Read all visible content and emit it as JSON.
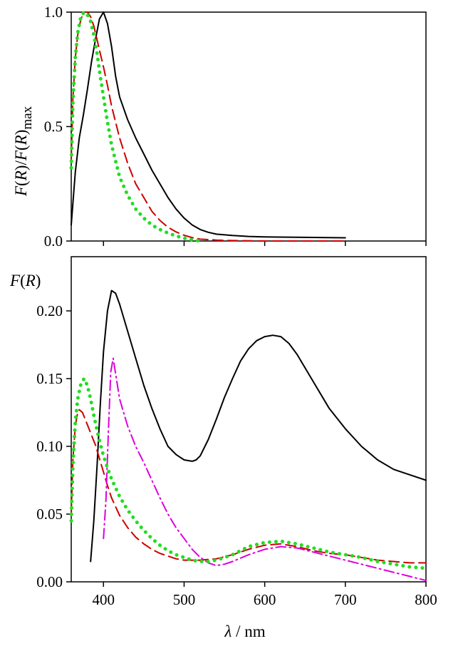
{
  "chart_data": [
    {
      "type": "line",
      "xlim": [
        360,
        800
      ],
      "ylim": [
        0,
        1.0
      ],
      "ylabel": "F(R)/F(R)max",
      "ylabel_parts": {
        "a": "F",
        "b": "(",
        "c": "R",
        "d": ")/",
        "e": "F",
        "f": "(",
        "g": "R",
        "h": ")",
        "sub": "max"
      },
      "yticks": [
        {
          "value": 0.0,
          "label": "0.0"
        },
        {
          "value": 0.5,
          "label": "0.5"
        },
        {
          "value": 1.0,
          "label": "1.0"
        }
      ],
      "xticks": [
        400,
        500,
        600,
        700,
        800
      ],
      "series": [
        {
          "color": "#000000",
          "style": "solid",
          "x": [
            360,
            365,
            370,
            375,
            380,
            385,
            390,
            395,
            400,
            405,
            410,
            415,
            420,
            430,
            440,
            450,
            460,
            470,
            480,
            490,
            500,
            510,
            520,
            530,
            540,
            560,
            580,
            600,
            650,
            700
          ],
          "y": [
            0.07,
            0.3,
            0.45,
            0.55,
            0.66,
            0.78,
            0.88,
            0.97,
            1.0,
            0.95,
            0.85,
            0.72,
            0.63,
            0.53,
            0.45,
            0.38,
            0.31,
            0.25,
            0.19,
            0.14,
            0.1,
            0.07,
            0.05,
            0.038,
            0.03,
            0.024,
            0.02,
            0.018,
            0.016,
            0.014
          ]
        },
        {
          "color": "#cc0000",
          "style": "dashed",
          "x": [
            360,
            362,
            365,
            368,
            372,
            376,
            380,
            384,
            388,
            392,
            396,
            400,
            405,
            410,
            420,
            430,
            440,
            450,
            460,
            470,
            480,
            490,
            500,
            510,
            520,
            540,
            560,
            600,
            650,
            700
          ],
          "y": [
            0.35,
            0.62,
            0.8,
            0.9,
            0.97,
            1.0,
            1.0,
            0.98,
            0.94,
            0.88,
            0.82,
            0.76,
            0.68,
            0.59,
            0.45,
            0.34,
            0.25,
            0.19,
            0.13,
            0.09,
            0.06,
            0.04,
            0.025,
            0.015,
            0.008,
            0.004,
            0.002,
            0.0,
            0.0,
            0.0
          ]
        },
        {
          "color": "#22dd22",
          "style": "dotted",
          "x": [
            360,
            362,
            365,
            368,
            372,
            376,
            380,
            384,
            388,
            392,
            396,
            400,
            405,
            410,
            420,
            430,
            440,
            450,
            460,
            470,
            480,
            490,
            500,
            510,
            520
          ],
          "y": [
            0.32,
            0.6,
            0.8,
            0.91,
            0.98,
            1.0,
            0.99,
            0.96,
            0.9,
            0.82,
            0.72,
            0.63,
            0.52,
            0.42,
            0.28,
            0.2,
            0.14,
            0.1,
            0.07,
            0.05,
            0.035,
            0.022,
            0.012,
            0.005,
            0.0
          ]
        }
      ]
    },
    {
      "type": "line",
      "xlim": [
        360,
        800
      ],
      "ylim": [
        0,
        0.24
      ],
      "xlabel": "λ / nm",
      "xlabel_parts": {
        "sym": "λ",
        "unit": " / nm"
      },
      "ylabel": "F(R)",
      "ylabel_parts": {
        "a": "F",
        "b": "(",
        "c": "R",
        "d": ")"
      },
      "yticks": [
        {
          "value": 0.0,
          "label": "0.00"
        },
        {
          "value": 0.05,
          "label": "0.05"
        },
        {
          "value": 0.1,
          "label": "0.10"
        },
        {
          "value": 0.15,
          "label": "0.15"
        },
        {
          "value": 0.2,
          "label": "0.20"
        }
      ],
      "xticks": [
        {
          "value": 400,
          "label": "400"
        },
        {
          "value": 500,
          "label": "500"
        },
        {
          "value": 600,
          "label": "600"
        },
        {
          "value": 700,
          "label": "700"
        },
        {
          "value": 800,
          "label": "800"
        }
      ],
      "series": [
        {
          "color": "#000000",
          "style": "solid",
          "x": [
            384,
            388,
            392,
            396,
            400,
            405,
            410,
            415,
            420,
            430,
            440,
            450,
            460,
            470,
            480,
            490,
            500,
            510,
            515,
            520,
            530,
            540,
            550,
            560,
            570,
            580,
            590,
            600,
            610,
            620,
            630,
            640,
            650,
            660,
            680,
            700,
            720,
            740,
            760,
            780,
            800
          ],
          "y": [
            0.015,
            0.045,
            0.085,
            0.13,
            0.17,
            0.2,
            0.215,
            0.213,
            0.205,
            0.185,
            0.165,
            0.145,
            0.128,
            0.113,
            0.1,
            0.094,
            0.09,
            0.089,
            0.09,
            0.093,
            0.105,
            0.12,
            0.136,
            0.15,
            0.163,
            0.172,
            0.178,
            0.181,
            0.182,
            0.181,
            0.176,
            0.168,
            0.158,
            0.148,
            0.128,
            0.113,
            0.1,
            0.09,
            0.083,
            0.079,
            0.075
          ]
        },
        {
          "color": "#cc0000",
          "style": "dashed",
          "x": [
            360,
            362,
            365,
            368,
            370,
            374,
            378,
            382,
            386,
            390,
            395,
            400,
            405,
            410,
            420,
            430,
            440,
            450,
            460,
            470,
            480,
            490,
            500,
            520,
            540,
            560,
            580,
            600,
            620,
            640,
            660,
            680,
            700,
            720,
            740,
            760,
            780,
            800
          ],
          "y": [
            0.05,
            0.09,
            0.115,
            0.125,
            0.127,
            0.125,
            0.119,
            0.113,
            0.107,
            0.101,
            0.091,
            0.081,
            0.071,
            0.062,
            0.049,
            0.04,
            0.033,
            0.028,
            0.024,
            0.021,
            0.019,
            0.017,
            0.016,
            0.016,
            0.017,
            0.02,
            0.024,
            0.027,
            0.028,
            0.026,
            0.023,
            0.021,
            0.02,
            0.018,
            0.016,
            0.015,
            0.014,
            0.014
          ]
        },
        {
          "color": "#dd00dd",
          "style": "dashdot",
          "x": [
            400,
            403,
            406,
            409,
            412,
            416,
            420,
            430,
            440,
            450,
            460,
            470,
            480,
            490,
            500,
            510,
            520,
            530,
            540,
            550,
            560,
            580,
            600,
            620,
            640,
            660,
            680,
            700,
            720,
            740,
            760,
            780,
            800
          ],
          "y": [
            0.032,
            0.06,
            0.11,
            0.155,
            0.165,
            0.15,
            0.135,
            0.115,
            0.1,
            0.088,
            0.075,
            0.062,
            0.05,
            0.04,
            0.032,
            0.024,
            0.018,
            0.014,
            0.012,
            0.013,
            0.015,
            0.02,
            0.024,
            0.026,
            0.025,
            0.022,
            0.019,
            0.016,
            0.013,
            0.01,
            0.007,
            0.004,
            0.001
          ]
        },
        {
          "color": "#22dd22",
          "style": "dotted",
          "x": [
            360,
            362,
            365,
            368,
            372,
            376,
            380,
            384,
            388,
            392,
            396,
            400,
            405,
            410,
            420,
            430,
            440,
            450,
            460,
            470,
            480,
            490,
            500,
            510,
            520,
            530,
            540,
            560,
            580,
            600,
            620,
            640,
            660,
            680,
            700,
            720,
            740,
            760,
            780,
            800
          ],
          "y": [
            0.045,
            0.085,
            0.118,
            0.135,
            0.146,
            0.15,
            0.145,
            0.135,
            0.123,
            0.112,
            0.102,
            0.093,
            0.084,
            0.076,
            0.063,
            0.053,
            0.045,
            0.038,
            0.032,
            0.027,
            0.023,
            0.02,
            0.018,
            0.016,
            0.015,
            0.015,
            0.016,
            0.02,
            0.026,
            0.029,
            0.03,
            0.028,
            0.025,
            0.022,
            0.02,
            0.018,
            0.015,
            0.013,
            0.011,
            0.01
          ]
        }
      ]
    }
  ]
}
